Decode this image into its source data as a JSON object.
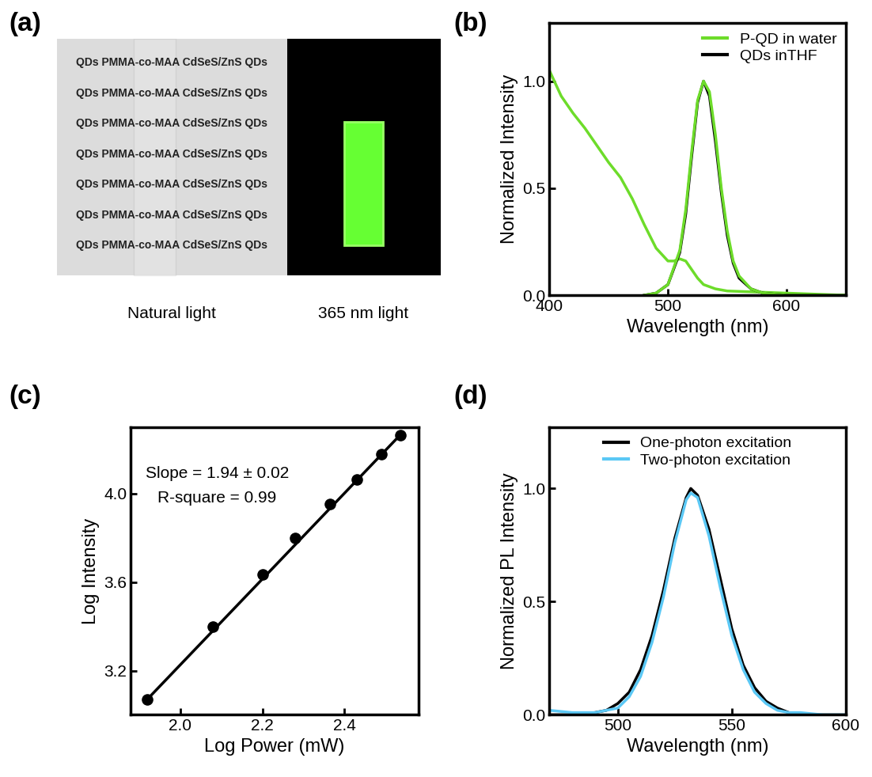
{
  "photo": {
    "label": "(a)",
    "printed_text": [
      "QDs PMMA-co-MAA CdSeS/ZnS QDs",
      "QDs PMMA-co-MAA CdSeS/ZnS QDs",
      "QDs PMMA-co-MAA CdSeS/ZnS QDs",
      "QDs PMMA-co-MAA CdSeS/ZnS QDs",
      "QDs PMMA-co-MAA CdSeS/ZnS QDs",
      "QDs PMMA-co-MAA CdSeS/ZnS QDs",
      "QDs PMMA-co-MAA CdSeS/ZnS QDs"
    ],
    "captions": [
      "Natural light",
      "365 nm light"
    ]
  },
  "chart_data": [
    {
      "type": "line",
      "title": "(b)",
      "x_label": "Wavelength (nm)",
      "y_label": "Normalized Intensity",
      "xlim": [
        400,
        650
      ],
      "xticks": [
        400,
        500,
        600
      ],
      "ylim": [
        0,
        1.27
      ],
      "yticks": [
        0.0,
        0.5,
        1.0
      ],
      "legend": "upper right",
      "series": [
        {
          "name": "P-QD in water",
          "color": "#6ddc2a",
          "x": [
            400,
            410,
            420,
            430,
            440,
            450,
            460,
            470,
            480,
            490,
            500,
            505,
            510,
            515,
            520,
            525,
            530,
            540,
            550,
            600,
            650
          ],
          "values": [
            1.05,
            0.93,
            0.85,
            0.78,
            0.7,
            0.62,
            0.55,
            0.45,
            0.33,
            0.22,
            0.16,
            0.16,
            0.17,
            0.16,
            0.12,
            0.08,
            0.05,
            0.03,
            0.02,
            0.01,
            0.0
          ]
        },
        {
          "name": "QDs inTHF",
          "color": "#000000",
          "x": [
            480,
            490,
            500,
            510,
            515,
            520,
            525,
            530,
            535,
            540,
            545,
            550,
            555,
            560,
            570,
            580,
            600,
            650
          ],
          "values": [
            0.0,
            0.01,
            0.05,
            0.2,
            0.38,
            0.65,
            0.9,
            1.0,
            0.93,
            0.72,
            0.48,
            0.28,
            0.15,
            0.08,
            0.03,
            0.01,
            0.0,
            0.0
          ]
        },
        {
          "color": "#6ddc2a",
          "x": [
            480,
            490,
            500,
            510,
            515,
            520,
            525,
            530,
            535,
            540,
            545,
            550,
            555,
            560,
            570,
            580,
            600,
            650
          ],
          "values": [
            0.0,
            0.01,
            0.05,
            0.21,
            0.4,
            0.67,
            0.91,
            1.0,
            0.95,
            0.75,
            0.5,
            0.3,
            0.16,
            0.09,
            0.03,
            0.01,
            0.0,
            0.0
          ]
        }
      ]
    },
    {
      "type": "scatter",
      "title": "(c)",
      "x_label": "Log Power (mW)",
      "y_label": "Log Intensity",
      "xlim": [
        1.88,
        2.58
      ],
      "xticks": [
        2.0,
        2.2,
        2.4
      ],
      "ylim": [
        3.0,
        4.3
      ],
      "yticks": [
        3.2,
        3.6,
        4.0
      ],
      "annotations": [
        "Slope = 1.94 ± 0.02",
        "R-square = 0.99"
      ],
      "series": [
        {
          "type": "scatter",
          "color": "#000000",
          "marker": "o",
          "x": [
            1.92,
            2.08,
            2.2,
            2.28,
            2.365,
            2.43,
            2.49,
            2.535
          ],
          "values": [
            3.07,
            3.4,
            3.635,
            3.8,
            3.955,
            4.065,
            4.18,
            4.265
          ]
        },
        {
          "type": "line",
          "color": "#000000",
          "x": [
            1.92,
            2.535
          ],
          "values": [
            3.07,
            4.265
          ]
        }
      ]
    },
    {
      "type": "line",
      "title": "(d)",
      "x_label": "Wavelength (nm)",
      "y_label": "Normalized PL Intensity",
      "xlim": [
        470,
        600
      ],
      "xticks": [
        500,
        550,
        600
      ],
      "ylim": [
        0,
        1.27
      ],
      "yticks": [
        0.0,
        0.5,
        1.0
      ],
      "legend": "upper center",
      "series": [
        {
          "name": "One-photon excitation",
          "color": "#000000",
          "x": [
            470,
            480,
            490,
            495,
            500,
            505,
            510,
            515,
            520,
            525,
            530,
            532,
            535,
            540,
            545,
            550,
            555,
            560,
            565,
            570,
            575,
            580,
            590,
            600
          ],
          "values": [
            0.0,
            0.0,
            0.01,
            0.02,
            0.05,
            0.1,
            0.2,
            0.35,
            0.55,
            0.78,
            0.96,
            1.0,
            0.97,
            0.82,
            0.6,
            0.38,
            0.22,
            0.12,
            0.06,
            0.03,
            0.01,
            0.0,
            0.0,
            0.0
          ]
        },
        {
          "name": "Two-photon excitation",
          "color": "#5bc8f5",
          "x": [
            470,
            480,
            490,
            495,
            500,
            505,
            510,
            515,
            520,
            525,
            530,
            532,
            535,
            540,
            545,
            550,
            555,
            560,
            565,
            570,
            575,
            580,
            590,
            600
          ],
          "values": [
            0.02,
            0.01,
            0.01,
            0.02,
            0.03,
            0.08,
            0.17,
            0.32,
            0.52,
            0.76,
            0.95,
            0.98,
            0.96,
            0.79,
            0.56,
            0.35,
            0.2,
            0.1,
            0.05,
            0.02,
            0.01,
            0.01,
            0.0,
            0.0
          ]
        }
      ]
    }
  ]
}
